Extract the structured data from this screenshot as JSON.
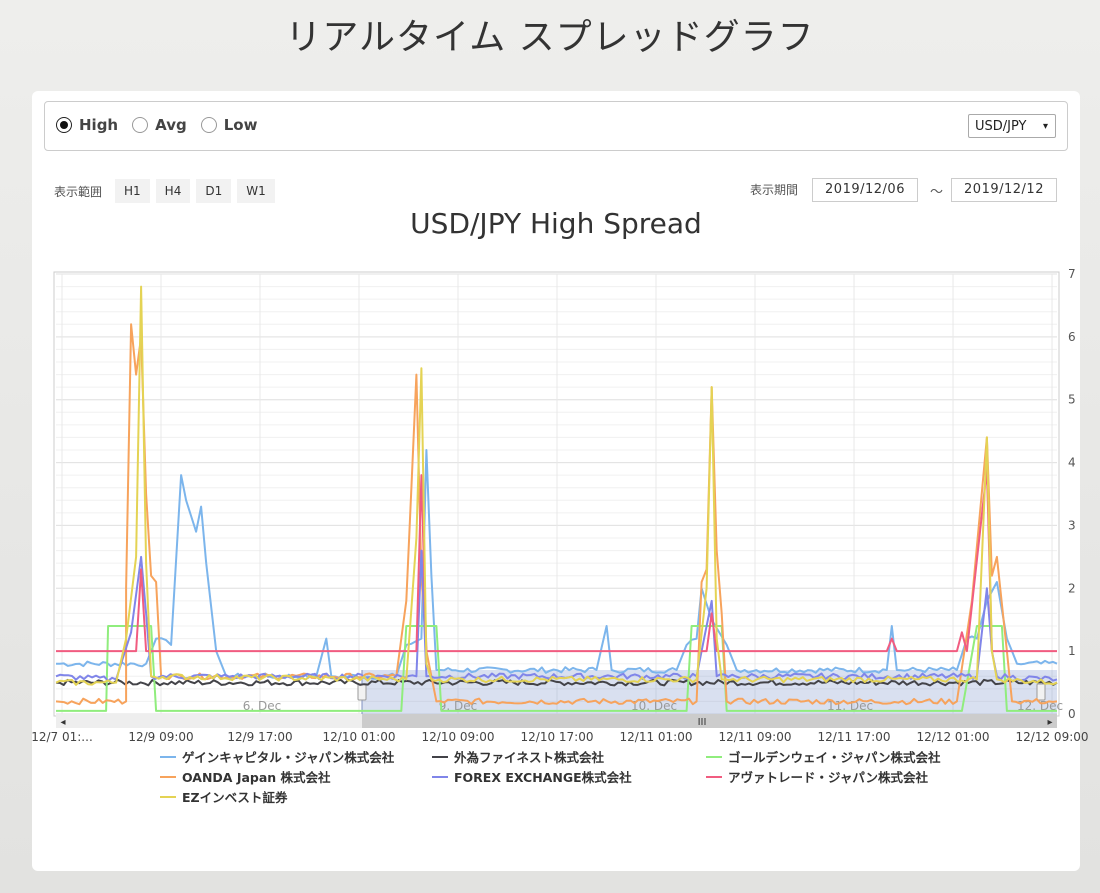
{
  "page": {
    "title": "リアルタイム スプレッドグラフ"
  },
  "toolbar": {
    "radios": [
      {
        "label": "High",
        "checked": true
      },
      {
        "label": "Avg",
        "checked": false
      },
      {
        "label": "Low",
        "checked": false
      }
    ],
    "pair": "USD/JPY",
    "pair_caret": "▾"
  },
  "range": {
    "label": "表示範囲",
    "buttons": [
      "H1",
      "H4",
      "D1",
      "W1"
    ]
  },
  "period": {
    "label": "表示期間",
    "from": "2019/12/06",
    "tilde": "～",
    "to": "2019/12/12"
  },
  "chart_data": {
    "type": "line",
    "title": "USD/JPY High Spread",
    "xlabel": "",
    "ylabel": "",
    "ylim": [
      0,
      7
    ],
    "y_ticks": [
      "0",
      "1",
      "2",
      "3",
      "4",
      "5",
      "6",
      "7"
    ],
    "x_ticks": [
      "12/7 01:...",
      "12/9 09:00",
      "12/9 17:00",
      "12/10 01:00",
      "12/10 09:00",
      "12/10 17:00",
      "12/11 01:00",
      "12/11 09:00",
      "12/11 17:00",
      "12/12 01:00",
      "12/12 09:00"
    ],
    "navigator_labels": [
      "6. Dec",
      "9. Dec",
      "10. Dec",
      "11. Dec",
      "12. Dec"
    ],
    "scroll_grip": "III",
    "scroll_left_arrow": "◂",
    "scroll_right_arrow": "▸",
    "grid": true,
    "legend_position": "bottom",
    "series": [
      {
        "name": "ゲインキャピタル・ジャパン株式会社",
        "color": "#7cb5ec",
        "baseline": 0.8,
        "points": [
          [
            0,
            0.8
          ],
          [
            0.09,
            0.8
          ],
          [
            0.1,
            1.2
          ],
          [
            0.115,
            1.1
          ],
          [
            0.125,
            3.8
          ],
          [
            0.13,
            3.4
          ],
          [
            0.14,
            2.9
          ],
          [
            0.145,
            3.3
          ],
          [
            0.15,
            2.4
          ],
          [
            0.16,
            1.0
          ],
          [
            0.17,
            0.6
          ],
          [
            0.26,
            0.6
          ],
          [
            0.27,
            1.2
          ],
          [
            0.275,
            0.6
          ],
          [
            0.34,
            0.6
          ],
          [
            0.35,
            1.1
          ],
          [
            0.365,
            1.2
          ],
          [
            0.37,
            4.2
          ],
          [
            0.375,
            2.2
          ],
          [
            0.38,
            0.7
          ],
          [
            0.54,
            0.7
          ],
          [
            0.55,
            1.4
          ],
          [
            0.555,
            0.7
          ],
          [
            0.62,
            0.7
          ],
          [
            0.63,
            1.1
          ],
          [
            0.64,
            1.2
          ],
          [
            0.645,
            2.0
          ],
          [
            0.655,
            1.5
          ],
          [
            0.67,
            1.1
          ],
          [
            0.68,
            0.7
          ],
          [
            0.83,
            0.7
          ],
          [
            0.835,
            1.4
          ],
          [
            0.84,
            0.7
          ],
          [
            0.9,
            0.7
          ],
          [
            0.91,
            1.2
          ],
          [
            0.92,
            1.2
          ],
          [
            0.93,
            1.8
          ],
          [
            0.94,
            2.1
          ],
          [
            0.95,
            1.2
          ],
          [
            0.96,
            0.8
          ],
          [
            1,
            0.8
          ]
        ]
      },
      {
        "name": "外為ファイネスト株式会社",
        "color": "#434348",
        "baseline": 0.5,
        "points": []
      },
      {
        "name": "ゴールデンウェイ・ジャパン株式会社",
        "color": "#90ed7d",
        "baseline": 0.05,
        "points": [
          [
            0,
            0.05
          ],
          [
            0.05,
            0.05
          ],
          [
            0.052,
            1.4
          ],
          [
            0.095,
            1.4
          ],
          [
            0.1,
            0.05
          ],
          [
            0.345,
            0.05
          ],
          [
            0.35,
            1.4
          ],
          [
            0.38,
            1.4
          ],
          [
            0.385,
            0.05
          ],
          [
            0.63,
            0.05
          ],
          [
            0.635,
            1.4
          ],
          [
            0.665,
            1.4
          ],
          [
            0.67,
            0.05
          ],
          [
            0.905,
            0.05
          ],
          [
            0.92,
            1.4
          ],
          [
            0.945,
            1.4
          ],
          [
            0.95,
            0.05
          ],
          [
            1,
            0.05
          ]
        ]
      },
      {
        "name": "OANDA Japan 株式会社",
        "color": "#f7a35c",
        "baseline": 0.2,
        "points": [
          [
            0,
            0.2
          ],
          [
            0.07,
            0.2
          ],
          [
            0.07,
            2.0
          ],
          [
            0.075,
            6.2
          ],
          [
            0.08,
            5.4
          ],
          [
            0.085,
            6.0
          ],
          [
            0.09,
            3.5
          ],
          [
            0.095,
            2.2
          ],
          [
            0.1,
            2.1
          ],
          [
            0.105,
            0.6
          ],
          [
            0.34,
            0.6
          ],
          [
            0.35,
            1.8
          ],
          [
            0.36,
            5.4
          ],
          [
            0.365,
            2.2
          ],
          [
            0.37,
            1.0
          ],
          [
            0.38,
            0.2
          ],
          [
            0.64,
            0.2
          ],
          [
            0.645,
            2.1
          ],
          [
            0.65,
            2.3
          ],
          [
            0.655,
            5.2
          ],
          [
            0.66,
            2.6
          ],
          [
            0.665,
            1.6
          ],
          [
            0.67,
            0.2
          ],
          [
            0.9,
            0.2
          ],
          [
            0.915,
            1.8
          ],
          [
            0.93,
            4.4
          ],
          [
            0.935,
            2.2
          ],
          [
            0.94,
            2.5
          ],
          [
            0.95,
            1.0
          ],
          [
            0.955,
            0.2
          ],
          [
            1,
            0.2
          ]
        ]
      },
      {
        "name": "FOREX EXCHANGE株式会社",
        "color": "#8085e9",
        "baseline": 0.55,
        "points": [
          [
            0,
            0.6
          ],
          [
            0.06,
            0.55
          ],
          [
            0.075,
            1.3
          ],
          [
            0.085,
            2.5
          ],
          [
            0.09,
            1.6
          ],
          [
            0.095,
            0.6
          ],
          [
            0.36,
            0.6
          ],
          [
            0.365,
            2.6
          ],
          [
            0.37,
            0.6
          ],
          [
            0.64,
            0.6
          ],
          [
            0.65,
            1.4
          ],
          [
            0.655,
            1.8
          ],
          [
            0.66,
            0.6
          ],
          [
            0.92,
            0.6
          ],
          [
            0.93,
            2.0
          ],
          [
            0.935,
            1.0
          ],
          [
            0.94,
            0.6
          ],
          [
            1,
            0.55
          ]
        ]
      },
      {
        "name": "アヴァトレード・ジャパン株式会社",
        "color": "#f15c80",
        "baseline": 1.0,
        "points": [
          [
            0,
            1.0
          ],
          [
            0.08,
            1.0
          ],
          [
            0.085,
            2.3
          ],
          [
            0.09,
            1.0
          ],
          [
            0.36,
            1.0
          ],
          [
            0.365,
            3.8
          ],
          [
            0.37,
            1.0
          ],
          [
            0.65,
            1.0
          ],
          [
            0.655,
            1.6
          ],
          [
            0.66,
            1.0
          ],
          [
            0.83,
            1.0
          ],
          [
            0.835,
            1.2
          ],
          [
            0.84,
            1.0
          ],
          [
            0.9,
            1.0
          ],
          [
            0.905,
            1.3
          ],
          [
            0.91,
            1.0
          ],
          [
            0.93,
            3.9
          ],
          [
            0.935,
            1.0
          ],
          [
            1,
            1.0
          ]
        ]
      },
      {
        "name": "EZインベスト証券",
        "color": "#e4d354",
        "baseline": 0.5,
        "points": [
          [
            0,
            0.5
          ],
          [
            0.06,
            0.5
          ],
          [
            0.07,
            1.2
          ],
          [
            0.08,
            2.5
          ],
          [
            0.085,
            6.8
          ],
          [
            0.09,
            2.4
          ],
          [
            0.095,
            0.6
          ],
          [
            0.35,
            0.55
          ],
          [
            0.36,
            2.8
          ],
          [
            0.365,
            5.5
          ],
          [
            0.37,
            0.8
          ],
          [
            0.375,
            0.55
          ],
          [
            0.64,
            0.55
          ],
          [
            0.65,
            2.0
          ],
          [
            0.655,
            5.2
          ],
          [
            0.66,
            1.2
          ],
          [
            0.665,
            0.55
          ],
          [
            0.92,
            0.55
          ],
          [
            0.93,
            4.4
          ],
          [
            0.935,
            1.0
          ],
          [
            0.94,
            0.55
          ],
          [
            1,
            0.5
          ]
        ]
      }
    ]
  }
}
